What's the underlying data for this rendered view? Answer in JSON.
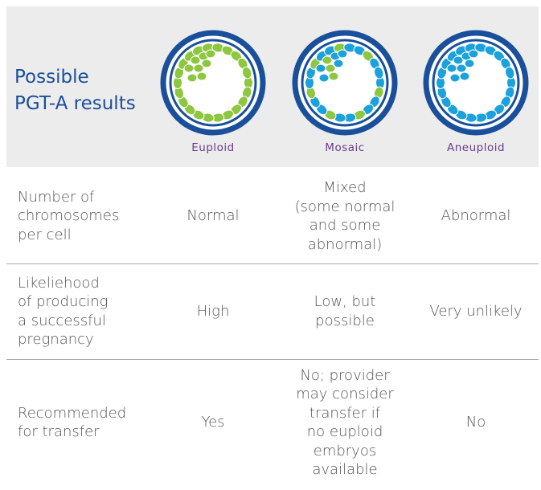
{
  "header": {
    "title": [
      "Possible",
      "PGT-A results"
    ],
    "columns": [
      "Euploid",
      "Mosaic",
      "Aneuploid"
    ]
  },
  "rows": [
    {
      "label": [
        "Number of",
        "chromosomes",
        "per cell"
      ],
      "cells": [
        [
          "Normal"
        ],
        [
          "Mixed",
          "(some normal",
          "and some",
          "abnormal)"
        ],
        [
          "Abnormal"
        ]
      ]
    },
    {
      "label": [
        "Likeliehood",
        "of producing",
        "a successful",
        "pregnancy"
      ],
      "cells": [
        [
          "High"
        ],
        [
          "Low, but",
          "possible"
        ],
        [
          "Very unlikely"
        ]
      ]
    },
    {
      "label": [
        "Recommended",
        "for transfer"
      ],
      "cells": [
        [
          "Yes"
        ],
        [
          "No; provider",
          "may consider",
          "transfer if",
          "no euploid",
          "embryos",
          "available"
        ],
        [
          "No"
        ]
      ]
    }
  ]
}
